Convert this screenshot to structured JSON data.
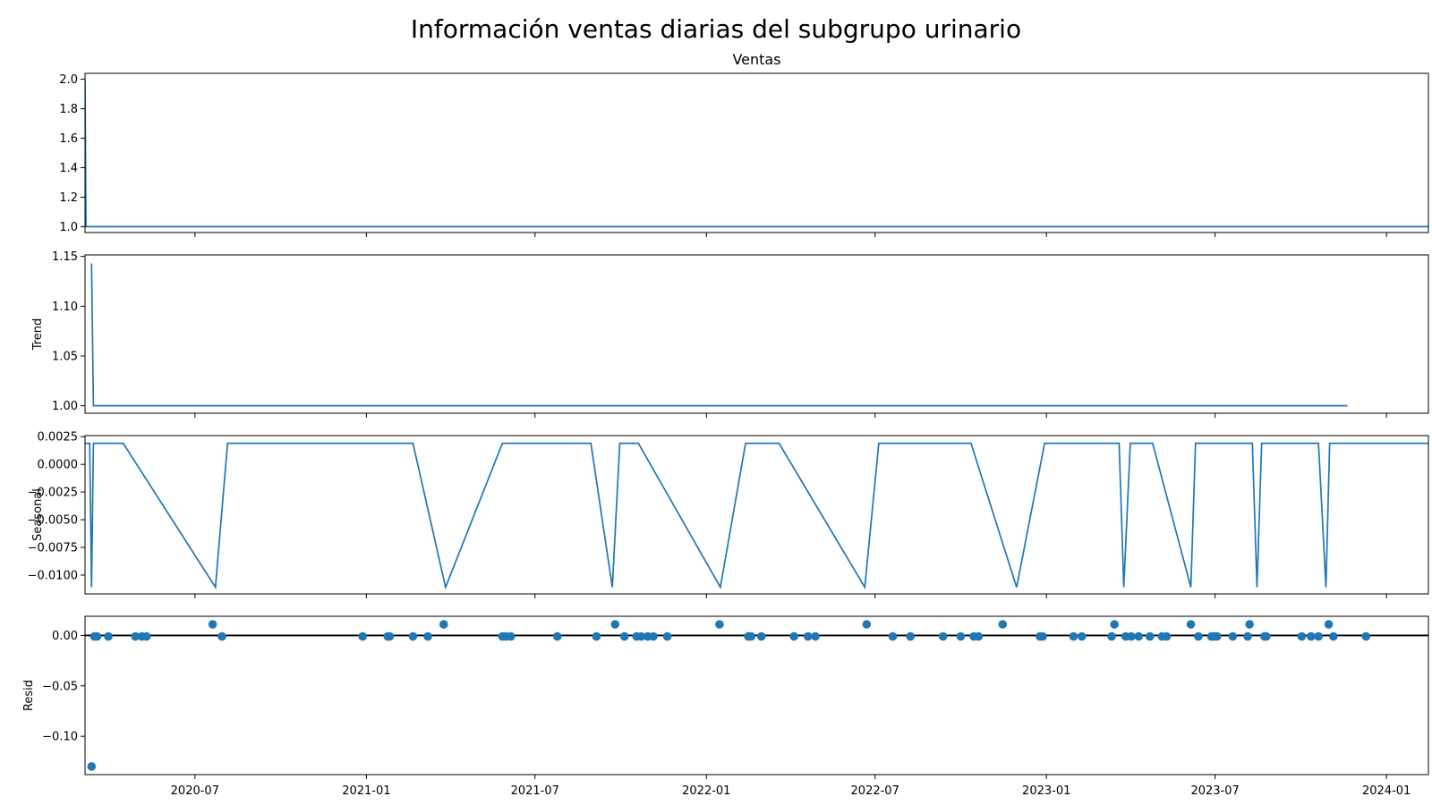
{
  "figure": {
    "title": "Información ventas diarias del subgrupo urinario"
  },
  "chart_data": {
    "type": "line",
    "colors": {
      "series": "#1f77b4",
      "axes": "#000000",
      "zero_line": "#000000"
    },
    "x_axis": {
      "type": "date",
      "range": [
        "2020-03-05",
        "2024-02-15"
      ],
      "tick_labels": [
        "2020-07",
        "2021-01",
        "2021-07",
        "2022-01",
        "2022-07",
        "2023-01",
        "2023-07",
        "2024-01"
      ],
      "tick_dates": [
        "2020-07-01",
        "2021-01-01",
        "2021-07-01",
        "2022-01-01",
        "2022-07-01",
        "2023-01-01",
        "2023-07-01",
        "2024-01-01"
      ]
    },
    "panels": [
      {
        "id": "observed",
        "title": "Ventas",
        "ylabel": "",
        "kind": "line",
        "ylim": [
          0.96,
          2.04
        ],
        "yticks": [
          "1.0",
          "1.2",
          "1.4",
          "1.6",
          "1.8",
          "2.0"
        ],
        "ytick_values": [
          1.0,
          1.2,
          1.4,
          1.6,
          1.8,
          2.0
        ],
        "points": [
          [
            "2020-03-05",
            2.0
          ],
          [
            "2020-03-06",
            1.0
          ],
          [
            "2024-02-15",
            1.0
          ]
        ]
      },
      {
        "id": "trend",
        "title": "",
        "ylabel": "Trend",
        "kind": "line",
        "ylim": [
          0.9925,
          1.1515
        ],
        "yticks": [
          "1.00",
          "1.05",
          "1.10",
          "1.15"
        ],
        "ytick_values": [
          1.0,
          1.05,
          1.1,
          1.15
        ],
        "points": [
          [
            "2020-03-12",
            1.143
          ],
          [
            "2020-03-14",
            1.0
          ],
          [
            "2023-11-20",
            1.0
          ]
        ]
      },
      {
        "id": "seasonal",
        "title": "",
        "ylabel": "Seasonal",
        "kind": "line",
        "ylim": [
          -0.0117,
          0.0026
        ],
        "yticks": [
          "0.0025",
          "0.0000",
          "−0.0025",
          "−0.0050",
          "−0.0075",
          "−0.0100"
        ],
        "ytick_values": [
          0.0025,
          0.0,
          -0.0025,
          -0.005,
          -0.0075,
          -0.01
        ],
        "points": [
          [
            "2020-03-05",
            0.0019
          ],
          [
            "2020-03-10",
            0.0019
          ],
          [
            "2020-03-12",
            -0.0111
          ],
          [
            "2020-03-14",
            0.0019
          ],
          [
            "2020-04-15",
            0.0019
          ],
          [
            "2020-07-23",
            -0.0111
          ],
          [
            "2020-08-05",
            0.0019
          ],
          [
            "2021-02-20",
            0.0019
          ],
          [
            "2021-03-27",
            -0.0111
          ],
          [
            "2021-05-27",
            0.0019
          ],
          [
            "2021-08-30",
            0.0019
          ],
          [
            "2021-09-22",
            -0.0111
          ],
          [
            "2021-09-30",
            0.0019
          ],
          [
            "2021-10-20",
            0.0019
          ],
          [
            "2022-01-16",
            -0.0111
          ],
          [
            "2022-02-12",
            0.0019
          ],
          [
            "2022-03-20",
            0.0019
          ],
          [
            "2022-06-20",
            -0.0111
          ],
          [
            "2022-07-05",
            0.0019
          ],
          [
            "2022-10-12",
            0.0019
          ],
          [
            "2022-11-30",
            -0.0111
          ],
          [
            "2022-12-30",
            0.0019
          ],
          [
            "2023-03-20",
            0.0019
          ],
          [
            "2023-03-25",
            -0.0111
          ],
          [
            "2023-04-01",
            0.0019
          ],
          [
            "2023-04-25",
            0.0019
          ],
          [
            "2023-06-05",
            -0.0111
          ],
          [
            "2023-06-10",
            0.0019
          ],
          [
            "2023-08-10",
            0.0019
          ],
          [
            "2023-08-15",
            -0.0111
          ],
          [
            "2023-08-20",
            0.0019
          ],
          [
            "2023-10-20",
            0.0019
          ],
          [
            "2023-10-28",
            -0.0111
          ],
          [
            "2023-11-01",
            0.0019
          ],
          [
            "2024-02-15",
            0.0019
          ]
        ]
      },
      {
        "id": "resid",
        "title": "",
        "ylabel": "Resid",
        "kind": "scatter",
        "ylim": [
          -0.138,
          0.019
        ],
        "yticks": [
          "0.00",
          "−0.05",
          "−0.10"
        ],
        "ytick_values": [
          0.0,
          -0.05,
          -0.1
        ],
        "zero_line": true,
        "points": [
          [
            "2020-03-12",
            -0.13
          ],
          [
            "2020-03-15",
            -0.001
          ],
          [
            "2020-03-18",
            -0.001
          ],
          [
            "2020-03-30",
            -0.001
          ],
          [
            "2020-04-28",
            -0.001
          ],
          [
            "2020-05-05",
            -0.001
          ],
          [
            "2020-05-10",
            -0.001
          ],
          [
            "2020-07-20",
            0.011
          ],
          [
            "2020-07-30",
            -0.001
          ],
          [
            "2020-12-28",
            -0.001
          ],
          [
            "2021-01-24",
            -0.001
          ],
          [
            "2021-01-26",
            -0.001
          ],
          [
            "2021-02-20",
            -0.001
          ],
          [
            "2021-03-08",
            -0.001
          ],
          [
            "2021-03-25",
            0.011
          ],
          [
            "2021-05-27",
            -0.001
          ],
          [
            "2021-05-31",
            -0.001
          ],
          [
            "2021-06-05",
            -0.001
          ],
          [
            "2021-07-25",
            -0.001
          ],
          [
            "2021-09-05",
            -0.001
          ],
          [
            "2021-09-25",
            0.011
          ],
          [
            "2021-10-05",
            -0.001
          ],
          [
            "2021-10-18",
            -0.001
          ],
          [
            "2021-10-23",
            -0.001
          ],
          [
            "2021-10-30",
            -0.001
          ],
          [
            "2021-11-05",
            -0.001
          ],
          [
            "2021-11-20",
            -0.001
          ],
          [
            "2022-01-15",
            0.011
          ],
          [
            "2022-02-15",
            -0.001
          ],
          [
            "2022-02-18",
            -0.001
          ],
          [
            "2022-03-01",
            -0.001
          ],
          [
            "2022-04-05",
            -0.001
          ],
          [
            "2022-04-20",
            -0.001
          ],
          [
            "2022-04-28",
            -0.001
          ],
          [
            "2022-06-22",
            0.011
          ],
          [
            "2022-07-20",
            -0.001
          ],
          [
            "2022-08-08",
            -0.001
          ],
          [
            "2022-09-12",
            -0.001
          ],
          [
            "2022-10-01",
            -0.001
          ],
          [
            "2022-10-15",
            -0.001
          ],
          [
            "2022-10-20",
            -0.001
          ],
          [
            "2022-11-15",
            0.011
          ],
          [
            "2022-12-25",
            -0.001
          ],
          [
            "2022-12-28",
            -0.001
          ],
          [
            "2023-01-30",
            -0.001
          ],
          [
            "2023-02-08",
            -0.001
          ],
          [
            "2023-03-12",
            -0.001
          ],
          [
            "2023-03-15",
            0.011
          ],
          [
            "2023-03-27",
            -0.001
          ],
          [
            "2023-04-02",
            -0.001
          ],
          [
            "2023-04-10",
            -0.001
          ],
          [
            "2023-04-22",
            -0.001
          ],
          [
            "2023-05-05",
            -0.001
          ],
          [
            "2023-05-10",
            -0.001
          ],
          [
            "2023-06-05",
            0.011
          ],
          [
            "2023-06-13",
            -0.001
          ],
          [
            "2023-06-27",
            -0.001
          ],
          [
            "2023-06-30",
            -0.001
          ],
          [
            "2023-07-03",
            -0.001
          ],
          [
            "2023-07-20",
            -0.001
          ],
          [
            "2023-08-05",
            -0.001
          ],
          [
            "2023-08-07",
            0.011
          ],
          [
            "2023-08-23",
            -0.001
          ],
          [
            "2023-08-25",
            -0.001
          ],
          [
            "2023-10-02",
            -0.001
          ],
          [
            "2023-10-12",
            -0.001
          ],
          [
            "2023-10-20",
            -0.001
          ],
          [
            "2023-10-31",
            0.011
          ],
          [
            "2023-11-05",
            -0.001
          ],
          [
            "2023-12-10",
            -0.001
          ]
        ]
      }
    ]
  }
}
